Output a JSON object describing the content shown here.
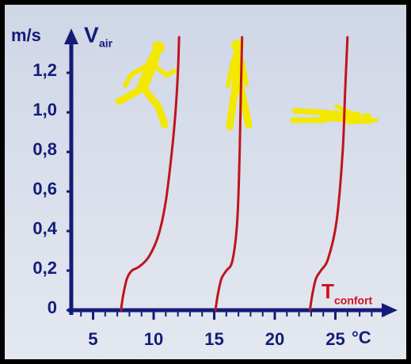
{
  "chart_data": {
    "type": "line",
    "ylabel_unit": "m/s",
    "ylabel": "V",
    "ylabel_sub": "air",
    "xlabel": "T",
    "xlabel_sub": "confort",
    "xunit": "°C",
    "xlim": [
      3.2,
      30
    ],
    "ylim": [
      0,
      1.4
    ],
    "xticks": [
      5,
      10,
      15,
      20,
      25
    ],
    "xminorticks": [
      4,
      6,
      7,
      8,
      9,
      11,
      12,
      13,
      14,
      16,
      17,
      18,
      19,
      21,
      22,
      23,
      24,
      26,
      27,
      28,
      29
    ],
    "yticks": [
      0,
      {
        "value": 0.2,
        "label": "0,2"
      },
      {
        "value": 0.4,
        "label": "0,4"
      },
      {
        "value": 0.6,
        "label": "0,6"
      },
      {
        "value": 0.8,
        "label": "0,8"
      },
      {
        "value": 1.0,
        "label": "1,0"
      },
      {
        "value": 1.2,
        "label": "1,2"
      }
    ],
    "series": [
      {
        "color": "#c0141c",
        "x": [
          7.3,
          7.5,
          7.8,
          8.2,
          8.8,
          9.6,
          10.4,
          11.0,
          11.5,
          11.8,
          12.0,
          12.1
        ],
        "values": [
          0,
          0.08,
          0.16,
          0.2,
          0.22,
          0.27,
          0.38,
          0.55,
          0.8,
          1.0,
          1.2,
          1.38
        ]
      },
      {
        "color": "#c0141c",
        "x": [
          15.1,
          15.3,
          15.6,
          16.0,
          16.5,
          16.9,
          17.1,
          17.2,
          17.3
        ],
        "values": [
          0,
          0.08,
          0.16,
          0.2,
          0.25,
          0.45,
          0.8,
          1.1,
          1.38
        ]
      },
      {
        "color": "#c0141c",
        "x": [
          22.9,
          23.1,
          23.4,
          23.8,
          24.4,
          25.1,
          25.6,
          25.8,
          26.0
        ],
        "values": [
          0,
          0.08,
          0.16,
          0.2,
          0.26,
          0.45,
          0.8,
          1.1,
          1.38
        ]
      }
    ]
  }
}
